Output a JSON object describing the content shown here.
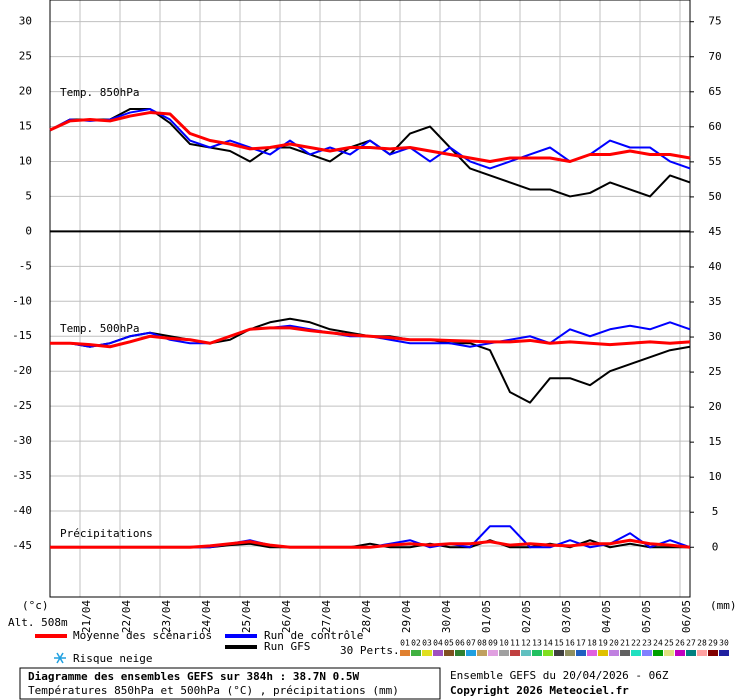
{
  "chart_data": {
    "type": "line",
    "xlim": [
      0,
      384
    ],
    "xticks": [
      {
        "value": 18,
        "label": "21/04"
      },
      {
        "value": 42,
        "label": "22/04"
      },
      {
        "value": 66,
        "label": "23/04"
      },
      {
        "value": 90,
        "label": "24/04"
      },
      {
        "value": 114,
        "label": "25/04"
      },
      {
        "value": 138,
        "label": "26/04"
      },
      {
        "value": 162,
        "label": "27/04"
      },
      {
        "value": 186,
        "label": "28/04"
      },
      {
        "value": 210,
        "label": "29/04"
      },
      {
        "value": 234,
        "label": "30/04"
      },
      {
        "value": 258,
        "label": "01/05"
      },
      {
        "value": 282,
        "label": "02/05"
      },
      {
        "value": 306,
        "label": "03/05"
      },
      {
        "value": 330,
        "label": "04/05"
      },
      {
        "value": 354,
        "label": "05/05"
      },
      {
        "value": 378,
        "label": "06/05"
      }
    ],
    "ylim": [
      -52.3,
      33.1
    ],
    "yticks": [
      30,
      25,
      20,
      15,
      10,
      5,
      0,
      -5,
      -10,
      -15,
      -20,
      -25,
      -30,
      -35,
      -40,
      -45
    ],
    "y2lim": [
      -7.1,
      78.1
    ],
    "y2ticks": [
      75,
      70,
      65,
      60,
      55,
      50,
      45,
      40,
      35,
      30,
      25,
      20,
      15,
      10,
      5,
      0
    ],
    "y_unit": "(°c)",
    "y2_unit": "(mm)",
    "altitude": "Alt. 508m",
    "grid": true,
    "x": [
      0,
      12,
      24,
      36,
      48,
      60,
      72,
      84,
      96,
      108,
      120,
      132,
      144,
      156,
      168,
      180,
      192,
      204,
      216,
      228,
      240,
      252,
      264,
      276,
      288,
      300,
      312,
      324,
      336,
      348,
      360,
      372,
      384
    ],
    "series": [
      {
        "name": "Moyenne des scénarios",
        "color": "#ff0000"
      },
      {
        "name": "Run de contrôle",
        "color": "#0000ff"
      },
      {
        "name": "Run GFS",
        "color": "#000000"
      }
    ],
    "panels": [
      {
        "label": "Temp. 850hPa",
        "axis": "y",
        "values": [
          [
            14.5,
            15.8,
            16,
            15.8,
            16.5,
            17,
            16.8,
            14,
            13,
            12.5,
            11.8,
            12,
            12.5,
            12,
            11.5,
            12,
            12,
            11.8,
            12,
            11.5,
            11,
            10.5,
            10,
            10.5,
            10.5,
            10.5,
            10,
            11,
            11,
            11.5,
            11,
            11,
            10.5
          ],
          [
            14.5,
            16,
            15.8,
            16,
            17,
            17.5,
            16,
            13,
            12,
            13,
            12,
            11,
            13,
            11,
            12,
            11,
            13,
            11,
            12,
            10,
            12,
            10,
            9,
            10,
            11,
            12,
            10,
            11,
            13,
            12,
            12,
            10,
            9
          ],
          [
            14.5,
            16,
            16,
            16,
            17.5,
            17.5,
            15.5,
            12.5,
            12,
            11.5,
            10,
            12,
            12,
            11,
            10,
            12,
            13,
            11,
            14,
            15,
            12,
            9,
            8,
            7,
            6,
            6,
            5,
            5.5,
            7,
            6,
            5,
            8,
            7
          ]
        ]
      },
      {
        "label": "Temp. 500hPa",
        "axis": "y",
        "values": [
          [
            -16,
            -16,
            -16.2,
            -16.5,
            -15.8,
            -15,
            -15.3,
            -15.5,
            -16,
            -15,
            -14,
            -13.8,
            -13.8,
            -14.2,
            -14.5,
            -14.8,
            -15,
            -15.2,
            -15.5,
            -15.5,
            -15.6,
            -15.7,
            -15.8,
            -15.8,
            -15.6,
            -16,
            -15.8,
            -16,
            -16.2,
            -16,
            -15.8,
            -16,
            -15.8
          ],
          [
            -16,
            -16,
            -16.5,
            -16,
            -15,
            -14.5,
            -15.5,
            -16,
            -16,
            -15,
            -14,
            -13.8,
            -13.5,
            -14,
            -14.5,
            -15,
            -15,
            -15.5,
            -16,
            -16,
            -16,
            -16.5,
            -16,
            -15.5,
            -15,
            -16,
            -14,
            -15,
            -14,
            -13.5,
            -14,
            -13,
            -14
          ],
          [
            -16,
            -16,
            -16.5,
            -16,
            -15,
            -14.5,
            -15,
            -15.5,
            -16,
            -15.5,
            -14,
            -13,
            -12.5,
            -13,
            -14,
            -14.5,
            -15,
            -15,
            -15.5,
            -15.5,
            -16,
            -16,
            -17,
            -23,
            -24.5,
            -21,
            -21,
            -22,
            -20,
            -19,
            -18,
            -17,
            -16.5
          ]
        ]
      },
      {
        "label": "Précipitations",
        "axis": "y2",
        "values": [
          [
            0,
            0,
            0,
            0,
            0,
            0,
            0,
            0,
            0.2,
            0.5,
            0.8,
            0.3,
            0,
            0,
            0,
            0,
            0,
            0.3,
            0.5,
            0.3,
            0.5,
            0.5,
            0.8,
            0.3,
            0.5,
            0.3,
            0.2,
            0.5,
            0.5,
            1,
            0.5,
            0.3,
            0
          ],
          [
            0,
            0,
            0,
            0,
            0,
            0,
            0,
            0,
            0,
            0.5,
            1,
            0.3,
            0,
            0,
            0,
            0,
            0,
            0.5,
            1,
            0,
            0.5,
            0,
            3,
            3,
            0,
            0,
            1,
            0,
            0.5,
            2,
            0,
            1,
            0
          ],
          [
            0,
            0,
            0,
            0,
            0,
            0,
            0,
            0,
            0,
            0.3,
            0.5,
            0,
            0,
            0,
            0,
            0,
            0.5,
            0,
            0,
            0.5,
            0,
            0,
            1,
            0,
            0,
            0.5,
            0,
            1,
            0,
            0.5,
            0,
            0,
            0
          ]
        ]
      }
    ],
    "snow_label": "Risque neige",
    "perturbations": {
      "label": "30 Perts.",
      "members": [
        {
          "name": "01",
          "color": "#e08030"
        },
        {
          "name": "02",
          "color": "#40b040"
        },
        {
          "name": "03",
          "color": "#e0e020"
        },
        {
          "name": "04",
          "color": "#a050c0"
        },
        {
          "name": "05",
          "color": "#805020"
        },
        {
          "name": "06",
          "color": "#308030"
        },
        {
          "name": "07",
          "color": "#20a0e0"
        },
        {
          "name": "08",
          "color": "#c0a060"
        },
        {
          "name": "09",
          "color": "#e0a0e0"
        },
        {
          "name": "10",
          "color": "#a0a0a0"
        },
        {
          "name": "11",
          "color": "#c04040"
        },
        {
          "name": "12",
          "color": "#60c0c0"
        },
        {
          "name": "13",
          "color": "#20c060"
        },
        {
          "name": "14",
          "color": "#80e020"
        },
        {
          "name": "15",
          "color": "#404040"
        },
        {
          "name": "16",
          "color": "#909060"
        },
        {
          "name": "17",
          "color": "#2060c0"
        },
        {
          "name": "18",
          "color": "#e060e0"
        },
        {
          "name": "19",
          "color": "#e0c000"
        },
        {
          "name": "20",
          "color": "#c080e0"
        },
        {
          "name": "21",
          "color": "#606060"
        },
        {
          "name": "22",
          "color": "#20e0c0"
        },
        {
          "name": "23",
          "color": "#8080ff"
        },
        {
          "name": "24",
          "color": "#00a000"
        },
        {
          "name": "25",
          "color": "#e0e080"
        },
        {
          "name": "26",
          "color": "#c000c0"
        },
        {
          "name": "27",
          "color": "#008080"
        },
        {
          "name": "28",
          "color": "#ffa0a0"
        },
        {
          "name": "29",
          "color": "#800000"
        },
        {
          "name": "30",
          "color": "#2020a0"
        }
      ]
    },
    "footer": {
      "title": "Diagramme des ensembles GEFS sur 384h : 38.7N 0.5W",
      "subtitle": "Températures 850hPa et 500hPa (°C) , précipitations (mm)",
      "run": "Ensemble GEFS du 20/04/2026 - 06Z",
      "copyright": "Copyright 2026 Meteociel.fr"
    }
  }
}
